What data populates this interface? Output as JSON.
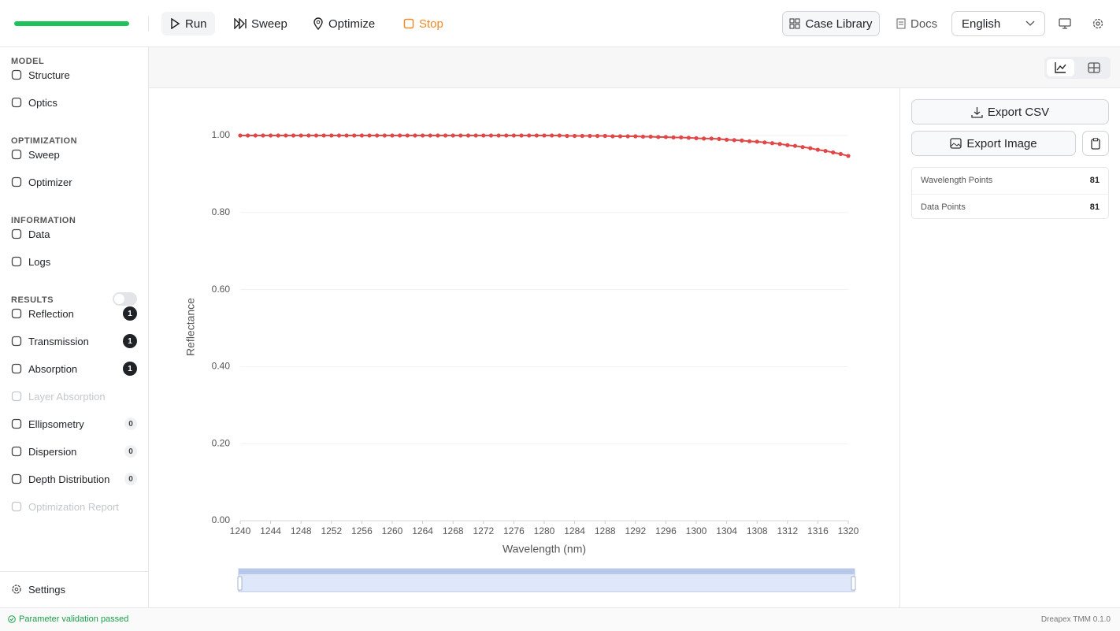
{
  "toolbar": {
    "run": "Run",
    "sweep": "Sweep",
    "optimize": "Optimize",
    "stop": "Stop",
    "case_library": "Case Library",
    "docs": "Docs",
    "language": "English"
  },
  "sidebar": {
    "sections": [
      {
        "title": "MODEL",
        "items": [
          {
            "label": "Structure"
          },
          {
            "label": "Optics"
          }
        ]
      },
      {
        "title": "OPTIMIZATION",
        "items": [
          {
            "label": "Sweep"
          },
          {
            "label": "Optimizer"
          }
        ]
      },
      {
        "title": "INFORMATION",
        "items": [
          {
            "label": "Data"
          },
          {
            "label": "Logs"
          }
        ]
      },
      {
        "title": "RESULTS",
        "items": [
          {
            "label": "Reflection",
            "count": 1
          },
          {
            "label": "Transmission",
            "count": 1
          },
          {
            "label": "Absorption",
            "count": 1
          },
          {
            "label": "Layer Absorption",
            "disabled": true
          },
          {
            "label": "Ellipsometry",
            "count": 0
          },
          {
            "label": "Dispersion",
            "count": 0
          },
          {
            "label": "Depth Distribution",
            "count": 0
          },
          {
            "label": "Optimization Report",
            "disabled": true
          }
        ]
      }
    ],
    "settings": "Settings"
  },
  "export": {
    "csv": "Export CSV",
    "image": "Export Image"
  },
  "stats": [
    {
      "label": "Wavelength Points",
      "value": 81
    },
    {
      "label": "Data Points",
      "value": 81
    }
  ],
  "status": {
    "message": "Parameter validation passed",
    "version": "Dreapex TMM 0.1.0"
  },
  "chart_data": {
    "type": "line",
    "x_label": "Wavelength (nm)",
    "y_label": "Reflectance",
    "color": "#e04848",
    "grid": true,
    "x": [
      1240,
      1241,
      1242,
      1243,
      1244,
      1245,
      1246,
      1247,
      1248,
      1249,
      1250,
      1251,
      1252,
      1253,
      1254,
      1255,
      1256,
      1257,
      1258,
      1259,
      1260,
      1261,
      1262,
      1263,
      1264,
      1265,
      1266,
      1267,
      1268,
      1269,
      1270,
      1271,
      1272,
      1273,
      1274,
      1275,
      1276,
      1277,
      1278,
      1279,
      1280,
      1281,
      1282,
      1283,
      1284,
      1285,
      1286,
      1287,
      1288,
      1289,
      1290,
      1291,
      1292,
      1293,
      1294,
      1295,
      1296,
      1297,
      1298,
      1299,
      1300,
      1301,
      1302,
      1303,
      1304,
      1305,
      1306,
      1307,
      1308,
      1309,
      1310,
      1311,
      1312,
      1313,
      1314,
      1315,
      1316,
      1317,
      1318,
      1319,
      1320
    ],
    "values": [
      1,
      1,
      1,
      1,
      1,
      1,
      1,
      1,
      1,
      1,
      1,
      1,
      1,
      1,
      1,
      1,
      1,
      1,
      1,
      1,
      1,
      1,
      1,
      1,
      1,
      1,
      1,
      1,
      1,
      1,
      1,
      1,
      1,
      1,
      1,
      1,
      1,
      1,
      1,
      1,
      1,
      1,
      1,
      0.999,
      0.999,
      0.999,
      0.999,
      0.999,
      0.999,
      0.998,
      0.998,
      0.998,
      0.998,
      0.997,
      0.997,
      0.996,
      0.996,
      0.995,
      0.995,
      0.994,
      0.993,
      0.992,
      0.992,
      0.991,
      0.989,
      0.988,
      0.987,
      0.985,
      0.984,
      0.982,
      0.98,
      0.978,
      0.975,
      0.973,
      0.97,
      0.967,
      0.963,
      0.96,
      0.956,
      0.952,
      0.947
    ],
    "xlim": [
      1240,
      1320
    ],
    "ylim": [
      0,
      1
    ],
    "xticks": [
      1240,
      1244,
      1248,
      1252,
      1256,
      1260,
      1264,
      1268,
      1272,
      1276,
      1280,
      1284,
      1288,
      1292,
      1296,
      1300,
      1304,
      1308,
      1312,
      1316,
      1320
    ],
    "yticks": [
      {
        "value": 0,
        "label": "0.00"
      },
      {
        "value": 0.2,
        "label": "0.20"
      },
      {
        "value": 0.4,
        "label": "0.40"
      },
      {
        "value": 0.6,
        "label": "0.60"
      },
      {
        "value": 0.8,
        "label": "0.80"
      },
      {
        "value": 1,
        "label": "1.00"
      }
    ]
  }
}
